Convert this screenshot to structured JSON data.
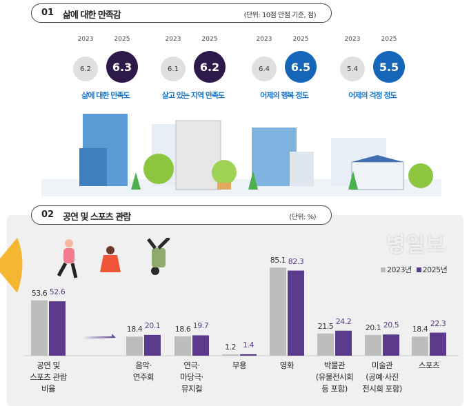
{
  "section1": {
    "number": "01",
    "title": "삶에 대한 만족감",
    "unit": "(단위: 10점 만점 기준, 점)",
    "metrics": [
      {
        "label": "삶에 대한 만족도",
        "year_a": "2023",
        "year_b": "2025",
        "value_a": "6.2",
        "value_b": "6.3",
        "color_b": "#2d1a4a"
      },
      {
        "label": "살고 있는 지역 만족도",
        "year_a": "2023",
        "year_b": "2025",
        "value_a": "6.1",
        "value_b": "6.2",
        "color_b": "#2d1a4a"
      },
      {
        "label": "어제의 행복 정도",
        "year_a": "2023",
        "year_b": "2025",
        "value_a": "6.4",
        "value_b": "6.5",
        "color_b": "#1565b8"
      },
      {
        "label": "어제의 걱정 정도",
        "year_a": "2023",
        "year_b": "2025",
        "value_a": "5.4",
        "value_b": "5.5",
        "color_b": "#1565b8"
      }
    ]
  },
  "section2": {
    "number": "02",
    "title": "공연 및 스포츠 관람",
    "unit": "(단위: %)"
  },
  "chart_data": {
    "type": "bar",
    "categories": [
      "공연 및\n스포츠 관람\n비율",
      "음악·\n연주회",
      "연극·\n마당극·\n뮤지컬",
      "무용",
      "영화",
      "박물관\n(유물전시회\n등 포함)",
      "미술관\n(공예·사진\n전시회 포함)",
      "스포츠"
    ],
    "series": [
      {
        "name": "2023년",
        "color": "#bdbdbd",
        "values": [
          53.6,
          18.4,
          18.6,
          1.2,
          85.1,
          21.5,
          20.1,
          18.4
        ]
      },
      {
        "name": "2025년",
        "color": "#5b3a8c",
        "values": [
          52.6,
          20.1,
          19.7,
          1.4,
          82.3,
          24.2,
          20.5,
          22.3
        ]
      }
    ],
    "legend": "top-right",
    "grid": false
  },
  "watermark": "병일보"
}
